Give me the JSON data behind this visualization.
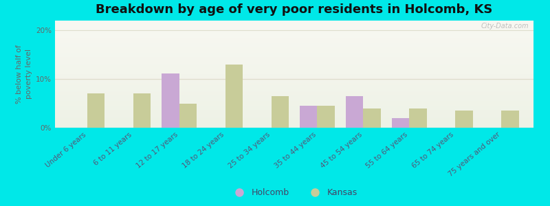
{
  "title": "Breakdown by age of very poor residents in Holcomb, KS",
  "ylabel": "% below half of\npoverty level",
  "categories": [
    "Under 6 years",
    "6 to 11 years",
    "12 to 17 years",
    "18 to 24 years",
    "25 to 34 years",
    "35 to 44 years",
    "45 to 54 years",
    "55 to 64 years",
    "65 to 74 years",
    "75 years and over"
  ],
  "holcomb_values": [
    0,
    0,
    11.2,
    0,
    0,
    4.5,
    6.5,
    2.0,
    0,
    0
  ],
  "kansas_values": [
    7.0,
    7.0,
    5.0,
    13.0,
    6.5,
    4.5,
    4.0,
    4.0,
    3.5,
    3.5
  ],
  "holcomb_color": "#c9a8d4",
  "kansas_color": "#c8cc99",
  "background_outer": "#00e8e8",
  "title_fontsize": 13,
  "ylabel_fontsize": 8,
  "tick_fontsize": 7.5,
  "legend_fontsize": 9,
  "ylim": [
    0,
    22
  ],
  "yticks": [
    0,
    10,
    20
  ],
  "ytick_labels": [
    "0%",
    "10%",
    "20%"
  ],
  "bar_width": 0.38,
  "watermark": "City-Data.com",
  "grid_color": "#ddddcc",
  "pink_line_color": "#ffb0b0"
}
